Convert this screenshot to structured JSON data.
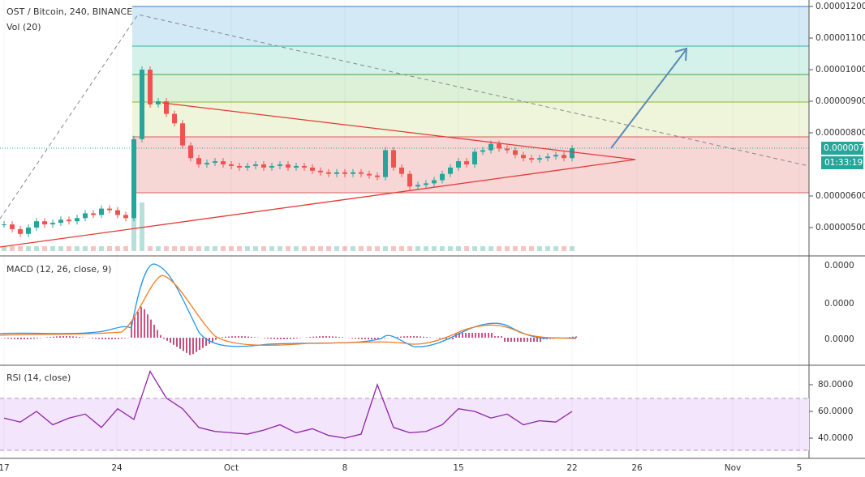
{
  "header": {
    "symbol": "OST / Bitcoin, 240, BINANCE",
    "volume": "Vol (20)"
  },
  "price_axis": {
    "ticks": [
      {
        "value": 1.2e-05,
        "label": "0.00001200"
      },
      {
        "value": 1.1e-05,
        "label": "0.00001100"
      },
      {
        "value": 1e-05,
        "label": "0.00001000"
      },
      {
        "value": 9e-06,
        "label": "0.00000900"
      },
      {
        "value": 8e-06,
        "label": "0.00000800"
      },
      {
        "value": 6e-06,
        "label": "0.00000600"
      },
      {
        "value": 5e-06,
        "label": "0.00000500"
      }
    ],
    "last_price": {
      "value": 7.51e-06,
      "label": "0.00000751"
    },
    "countdown": "01:33:19"
  },
  "price": {
    "closes": [
      5.1e-06,
      4.95e-06,
      4.8e-06,
      5e-06,
      5.2e-06,
      5.1e-06,
      5.15e-06,
      5.25e-06,
      5.2e-06,
      5.3e-06,
      5.45e-06,
      5.4e-06,
      5.6e-06,
      5.55e-06,
      5.4e-06,
      5.3e-06,
      7.8e-06,
      1e-05,
      8.9e-06,
      9e-06,
      8.6e-06,
      8.3e-06,
      7.6e-06,
      7.2e-06,
      7e-06,
      7.05e-06,
      7.1e-06,
      7e-06,
      6.95e-06,
      6.9e-06,
      6.95e-06,
      7e-06,
      6.9e-06,
      6.95e-06,
      7e-06,
      6.9e-06,
      6.95e-06,
      6.9e-06,
      6.8e-06,
      6.75e-06,
      6.7e-06,
      6.75e-06,
      6.7e-06,
      6.75e-06,
      6.7e-06,
      6.65e-06,
      6.6e-06,
      7.45e-06,
      6.9e-06,
      6.7e-06,
      6.3e-06,
      6.35e-06,
      6.4e-06,
      6.5e-06,
      6.7e-06,
      6.9e-06,
      7.1e-06,
      7e-06,
      7.4e-06,
      7.45e-06,
      7.65e-06,
      7.5e-06,
      7.45e-06,
      7.3e-06,
      7.2e-06,
      7.15e-06,
      7.2e-06,
      7.25e-06,
      7.3e-06,
      7.2e-06,
      7.51e-06
    ]
  },
  "macd": {
    "label": "MACD (12, 26, close, 9)",
    "axis": [
      "0.0000",
      "0.0000",
      "0.0000"
    ]
  },
  "rsi": {
    "label": "RSI (14, close)",
    "ticks": [
      {
        "value": 80,
        "label": "80.0000"
      },
      {
        "value": 60,
        "label": "60.0000"
      },
      {
        "value": 40,
        "label": "40.0000"
      }
    ],
    "values": [
      55,
      52,
      60,
      50,
      55,
      58,
      48,
      62,
      54,
      90,
      70,
      62,
      48,
      45,
      44,
      43,
      46,
      50,
      44,
      47,
      42,
      40,
      43,
      80,
      48,
      44,
      45,
      50,
      62,
      60,
      55,
      58,
      50,
      53,
      52,
      60
    ]
  },
  "time_axis": {
    "labels": [
      "17",
      "24",
      "Oct",
      "8",
      "15",
      "22",
      "26",
      "Nov",
      "5"
    ]
  }
}
